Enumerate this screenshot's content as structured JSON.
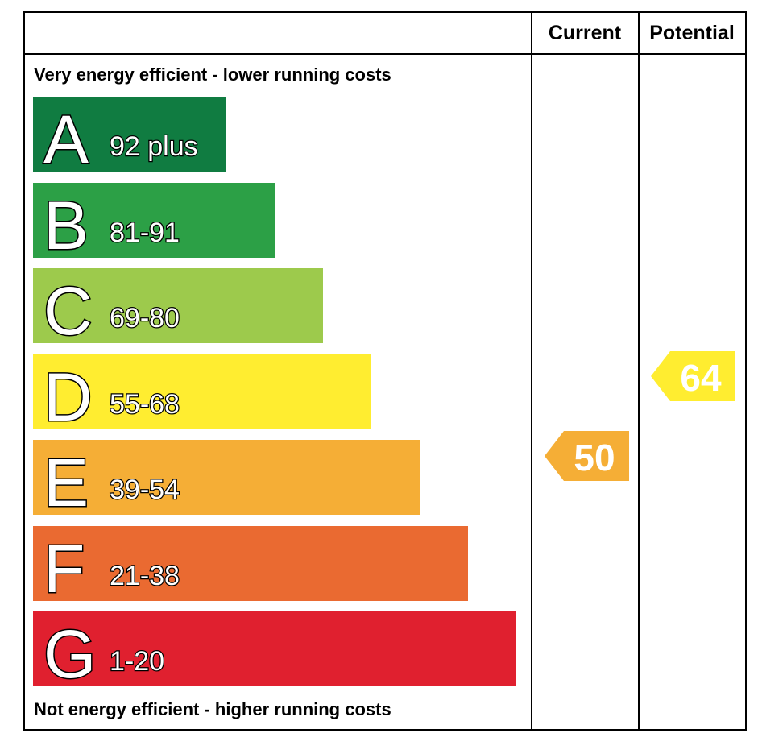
{
  "header": {
    "current": "Current",
    "potential": "Potential"
  },
  "top_note": "Very energy efficient - lower running costs",
  "bottom_note": "Not energy efficient - higher running costs",
  "bands": [
    {
      "letter": "A",
      "range": "92 plus",
      "color": "#107c41"
    },
    {
      "letter": "B",
      "range": "81-91",
      "color": "#2ca046"
    },
    {
      "letter": "C",
      "range": "69-80",
      "color": "#9dca4c"
    },
    {
      "letter": "D",
      "range": "55-68",
      "color": "#ffed30"
    },
    {
      "letter": "E",
      "range": "39-54",
      "color": "#f5ae36"
    },
    {
      "letter": "F",
      "range": "21-38",
      "color": "#ea6a31"
    },
    {
      "letter": "G",
      "range": "1-20",
      "color": "#e0202f"
    }
  ],
  "current": {
    "value": "50",
    "color": "#f5ae36"
  },
  "potential": {
    "value": "64",
    "color": "#ffed30"
  }
}
